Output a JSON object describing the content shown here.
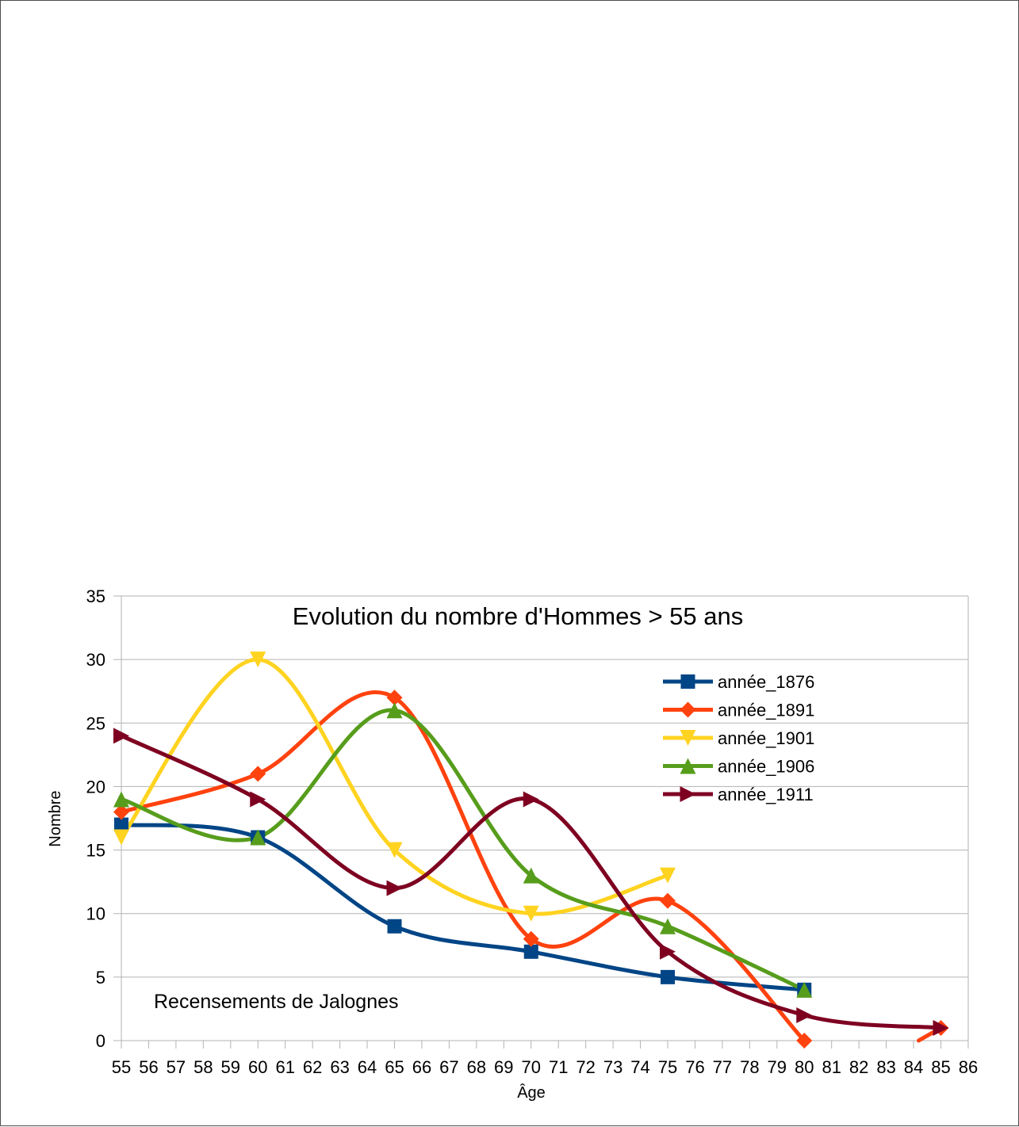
{
  "chart_data": {
    "type": "line",
    "title": "Evolution du nombre d'Hommes > 55 ans",
    "xlabel": "Âge",
    "ylabel": "Nombre",
    "annotation": "Recensements de Jalognes",
    "xlim": [
      55,
      86
    ],
    "ylim": [
      0,
      35
    ],
    "x_ticks": [
      55,
      56,
      57,
      58,
      59,
      60,
      61,
      62,
      63,
      64,
      65,
      66,
      67,
      68,
      69,
      70,
      71,
      72,
      73,
      74,
      75,
      76,
      77,
      78,
      79,
      80,
      81,
      82,
      83,
      84,
      85,
      86
    ],
    "y_ticks": [
      0,
      5,
      10,
      15,
      20,
      25,
      30,
      35
    ],
    "grid": "horizontal",
    "legend_position": "upper-right",
    "series": [
      {
        "name": "année_1876",
        "color": "#004586",
        "marker": "square",
        "x": [
          55,
          60,
          65,
          70,
          75,
          80
        ],
        "y": [
          17,
          16,
          9,
          7,
          5,
          4
        ]
      },
      {
        "name": "année_1891",
        "color": "#ff420e",
        "marker": "diamond",
        "x": [
          55,
          60,
          65,
          70,
          75,
          80
        ],
        "y": [
          18,
          21,
          27,
          8,
          11,
          0
        ],
        "extra_points": [
          {
            "x": 85,
            "y": 1
          }
        ]
      },
      {
        "name": "année_1901",
        "color": "#ffd320",
        "marker": "triangle-down",
        "x": [
          55,
          60,
          65,
          70,
          75
        ],
        "y": [
          16,
          30,
          15,
          10,
          13
        ]
      },
      {
        "name": "année_1906",
        "color": "#579d1c",
        "marker": "triangle-up",
        "x": [
          55,
          60,
          65,
          70,
          75,
          80
        ],
        "y": [
          19,
          16,
          26,
          13,
          9,
          4
        ]
      },
      {
        "name": "année_1911",
        "color": "#7e0021",
        "marker": "triangle-right",
        "x": [
          55,
          60,
          65,
          70,
          75,
          80,
          85
        ],
        "y": [
          24,
          19,
          12,
          19,
          7,
          2,
          1
        ]
      }
    ]
  }
}
